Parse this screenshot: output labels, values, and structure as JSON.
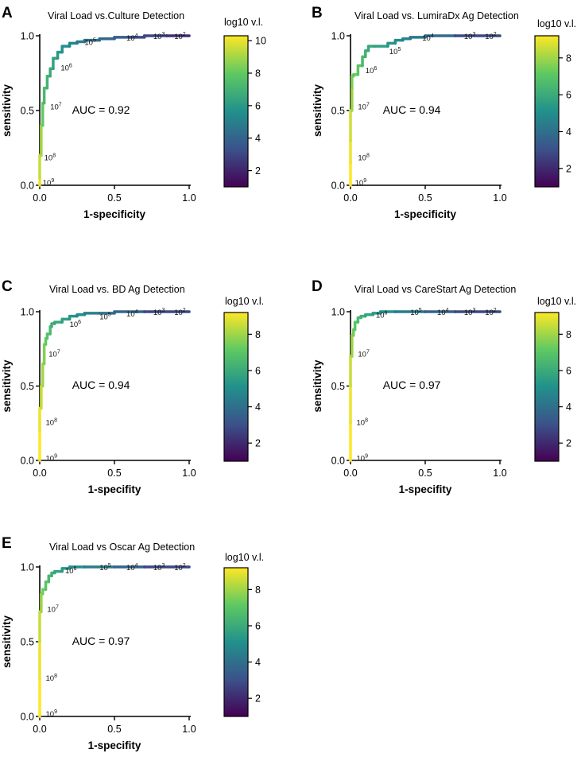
{
  "figure": {
    "colorbar_title": "log10 v.l."
  },
  "colormap": [
    "#440154",
    "#3b528b",
    "#21918c",
    "#5ec962",
    "#fde725"
  ],
  "chart_data": [
    {
      "panel": "A",
      "type": "line",
      "title": "Viral Load vs.Culture Detection",
      "xlabel": "1-specificity",
      "ylabel": "sensitivity",
      "xlim": [
        0,
        1
      ],
      "ylim": [
        0,
        1
      ],
      "xticks": [
        "0.0",
        "0.5",
        "1.0"
      ],
      "yticks": [
        "0.0",
        "0.5",
        "1.0"
      ],
      "auc_label": "AUC = 0.92",
      "colorbar": {
        "min": 1,
        "max": 10.3,
        "ticks": [
          "2",
          "4",
          "6",
          "8",
          "10"
        ],
        "tick_values": [
          2,
          4,
          6,
          8,
          10
        ]
      },
      "roc": [
        [
          0,
          0
        ],
        [
          0,
          0.05
        ],
        [
          0.01,
          0.2
        ],
        [
          0.02,
          0.4
        ],
        [
          0.03,
          0.55
        ],
        [
          0.05,
          0.65
        ],
        [
          0.07,
          0.73
        ],
        [
          0.09,
          0.78
        ],
        [
          0.12,
          0.85
        ],
        [
          0.15,
          0.89
        ],
        [
          0.2,
          0.93
        ],
        [
          0.25,
          0.95
        ],
        [
          0.3,
          0.96
        ],
        [
          0.4,
          0.97
        ],
        [
          0.5,
          0.98
        ],
        [
          0.6,
          0.99
        ],
        [
          0.7,
          0.99
        ],
        [
          0.85,
          1.0
        ],
        [
          1.0,
          1.0
        ]
      ],
      "roc_log10": [
        10,
        9.5,
        9,
        8,
        7.3,
        7,
        6.7,
        6.3,
        6,
        5.6,
        5.2,
        4.9,
        4.5,
        4.2,
        3.8,
        3.2,
        3,
        2.3,
        1.3
      ],
      "annotations": [
        {
          "base": "10",
          "exp": "2",
          "x": 0.9,
          "y": 1.0
        },
        {
          "base": "10",
          "exp": "3",
          "x": 0.76,
          "y": 1.0
        },
        {
          "base": "10",
          "exp": "4",
          "x": 0.58,
          "y": 0.99
        },
        {
          "base": "10",
          "exp": "5",
          "x": 0.3,
          "y": 0.96
        },
        {
          "base": "10",
          "exp": "6",
          "x": 0.14,
          "y": 0.79
        },
        {
          "base": "10",
          "exp": "7",
          "x": 0.07,
          "y": 0.53
        },
        {
          "base": "10",
          "exp": "8",
          "x": 0.03,
          "y": 0.19
        },
        {
          "base": "10",
          "exp": "9",
          "x": 0.02,
          "y": 0.02
        }
      ]
    },
    {
      "panel": "B",
      "type": "line",
      "title": "Viral Load vs. LumiraDx Ag Detection",
      "xlabel": "1-specificity",
      "ylabel": "sensitivity",
      "xlim": [
        0,
        1
      ],
      "ylim": [
        0,
        1
      ],
      "xticks": [
        "0.0",
        "0.5",
        "1.0"
      ],
      "yticks": [
        "0.0",
        "0.5",
        "1.0"
      ],
      "auc_label": "AUC = 0.94",
      "colorbar": {
        "min": 1,
        "max": 9.2,
        "ticks": [
          "2",
          "4",
          "6",
          "8"
        ],
        "tick_values": [
          2,
          4,
          6,
          8
        ]
      },
      "roc": [
        [
          0,
          0
        ],
        [
          0,
          0.15
        ],
        [
          0,
          0.3
        ],
        [
          0.01,
          0.5
        ],
        [
          0.01,
          0.65
        ],
        [
          0.02,
          0.73
        ],
        [
          0.05,
          0.74
        ],
        [
          0.08,
          0.8
        ],
        [
          0.1,
          0.86
        ],
        [
          0.12,
          0.9
        ],
        [
          0.16,
          0.93
        ],
        [
          0.25,
          0.93
        ],
        [
          0.3,
          0.95
        ],
        [
          0.35,
          0.97
        ],
        [
          0.4,
          0.98
        ],
        [
          0.5,
          0.99
        ],
        [
          0.7,
          1.0
        ],
        [
          1.0,
          1.0
        ]
      ],
      "roc_log10": [
        9.2,
        9,
        8.6,
        8,
        7.6,
        7.2,
        7,
        6.5,
        6.2,
        5.9,
        5.6,
        5.3,
        5,
        4.7,
        4.3,
        3.9,
        2.8,
        1.2
      ],
      "annotations": [
        {
          "base": "10",
          "exp": "2",
          "x": 0.9,
          "y": 1.0
        },
        {
          "base": "10",
          "exp": "3",
          "x": 0.76,
          "y": 1.0
        },
        {
          "base": "10",
          "exp": "4",
          "x": 0.48,
          "y": 0.99
        },
        {
          "base": "10",
          "exp": "5",
          "x": 0.26,
          "y": 0.9
        },
        {
          "base": "10",
          "exp": "6",
          "x": 0.1,
          "y": 0.77
        },
        {
          "base": "10",
          "exp": "7",
          "x": 0.05,
          "y": 0.53
        },
        {
          "base": "10",
          "exp": "8",
          "x": 0.05,
          "y": 0.19
        },
        {
          "base": "10",
          "exp": "9",
          "x": 0.03,
          "y": 0.02
        }
      ]
    },
    {
      "panel": "C",
      "type": "line",
      "title": "Viral Load vs. BD Ag Detection",
      "xlabel": "1-specifity",
      "ylabel": "sensitivity",
      "xlim": [
        0,
        1
      ],
      "ylim": [
        0,
        1
      ],
      "xticks": [
        "0.0",
        "0.5",
        "1.0"
      ],
      "yticks": [
        "0.0",
        "0.5",
        "1.0"
      ],
      "auc_label": "AUC = 0.94",
      "colorbar": {
        "min": 1,
        "max": 9.2,
        "ticks": [
          "2",
          "4",
          "6",
          "8"
        ],
        "tick_values": [
          2,
          4,
          6,
          8
        ]
      },
      "roc": [
        [
          0,
          0
        ],
        [
          0,
          0.2
        ],
        [
          0.01,
          0.35
        ],
        [
          0.02,
          0.5
        ],
        [
          0.03,
          0.65
        ],
        [
          0.04,
          0.78
        ],
        [
          0.05,
          0.82
        ],
        [
          0.07,
          0.85
        ],
        [
          0.08,
          0.9
        ],
        [
          0.1,
          0.92
        ],
        [
          0.15,
          0.93
        ],
        [
          0.2,
          0.95
        ],
        [
          0.25,
          0.97
        ],
        [
          0.3,
          0.98
        ],
        [
          0.4,
          0.99
        ],
        [
          0.5,
          0.99
        ],
        [
          0.7,
          1.0
        ],
        [
          1.0,
          1.0
        ]
      ],
      "roc_log10": [
        9.2,
        9,
        8.5,
        8,
        7.6,
        7.2,
        6.9,
        6.6,
        6.2,
        5.9,
        5.6,
        5.3,
        5,
        4.6,
        4.2,
        3.7,
        2.8,
        1.2
      ],
      "annotations": [
        {
          "base": "10",
          "exp": "2",
          "x": 0.9,
          "y": 1.0
        },
        {
          "base": "10",
          "exp": "3",
          "x": 0.76,
          "y": 1.0
        },
        {
          "base": "10",
          "exp": "4",
          "x": 0.58,
          "y": 0.99
        },
        {
          "base": "10",
          "exp": "5",
          "x": 0.4,
          "y": 0.97
        },
        {
          "base": "10",
          "exp": "6",
          "x": 0.2,
          "y": 0.92
        },
        {
          "base": "10",
          "exp": "7",
          "x": 0.06,
          "y": 0.72
        },
        {
          "base": "10",
          "exp": "8",
          "x": 0.04,
          "y": 0.26
        },
        {
          "base": "10",
          "exp": "9",
          "x": 0.04,
          "y": 0.02
        }
      ]
    },
    {
      "panel": "D",
      "type": "line",
      "title": "Viral Load vs CareStart Ag Detection",
      "xlabel": "1-specifity",
      "ylabel": "sensitivity",
      "xlim": [
        0,
        1
      ],
      "ylim": [
        0,
        1
      ],
      "xticks": [
        "0.0",
        "0.5",
        "1.0"
      ],
      "yticks": [
        "0.0",
        "0.5",
        "1.0"
      ],
      "auc_label": "AUC = 0.97",
      "colorbar": {
        "min": 1,
        "max": 9.2,
        "ticks": [
          "2",
          "4",
          "6",
          "8"
        ],
        "tick_values": [
          2,
          4,
          6,
          8
        ]
      },
      "roc": [
        [
          0,
          0
        ],
        [
          0,
          0.25
        ],
        [
          0,
          0.5
        ],
        [
          0.01,
          0.7
        ],
        [
          0.02,
          0.84
        ],
        [
          0.03,
          0.88
        ],
        [
          0.05,
          0.93
        ],
        [
          0.07,
          0.96
        ],
        [
          0.1,
          0.97
        ],
        [
          0.15,
          0.98
        ],
        [
          0.2,
          0.99
        ],
        [
          0.3,
          1.0
        ],
        [
          0.5,
          1.0
        ],
        [
          0.7,
          1.0
        ],
        [
          1.0,
          1.0
        ]
      ],
      "roc_log10": [
        9.2,
        9,
        8.5,
        8,
        7.4,
        7,
        6.6,
        6.2,
        5.8,
        5.4,
        5,
        4.4,
        3.6,
        2.8,
        1.2
      ],
      "annotations": [
        {
          "base": "10",
          "exp": "2",
          "x": 0.9,
          "y": 1.0
        },
        {
          "base": "10",
          "exp": "3",
          "x": 0.76,
          "y": 1.0
        },
        {
          "base": "10",
          "exp": "4",
          "x": 0.58,
          "y": 1.0
        },
        {
          "base": "10",
          "exp": "5",
          "x": 0.4,
          "y": 1.0
        },
        {
          "base": "10",
          "exp": "6",
          "x": 0.17,
          "y": 0.98
        },
        {
          "base": "10",
          "exp": "7",
          "x": 0.05,
          "y": 0.72
        },
        {
          "base": "10",
          "exp": "8",
          "x": 0.04,
          "y": 0.26
        },
        {
          "base": "10",
          "exp": "9",
          "x": 0.04,
          "y": 0.02
        }
      ]
    },
    {
      "panel": "E",
      "type": "line",
      "title": "Viral Load vs Oscar Ag Detection",
      "xlabel": "1-specifity",
      "ylabel": "sensitivity",
      "xlim": [
        0,
        1
      ],
      "ylim": [
        0,
        1
      ],
      "xticks": [
        "0.0",
        "0.5",
        "1.0"
      ],
      "yticks": [
        "0.0",
        "0.5",
        "1.0"
      ],
      "auc_label": "AUC = 0.97",
      "colorbar": {
        "min": 1,
        "max": 9.2,
        "ticks": [
          "2",
          "4",
          "6",
          "8"
        ],
        "tick_values": [
          2,
          4,
          6,
          8
        ]
      },
      "roc": [
        [
          0,
          0
        ],
        [
          0,
          0.25
        ],
        [
          0,
          0.5
        ],
        [
          0.01,
          0.7
        ],
        [
          0.02,
          0.82
        ],
        [
          0.04,
          0.85
        ],
        [
          0.06,
          0.9
        ],
        [
          0.08,
          0.94
        ],
        [
          0.1,
          0.96
        ],
        [
          0.15,
          0.97
        ],
        [
          0.2,
          0.99
        ],
        [
          0.3,
          1.0
        ],
        [
          0.5,
          1.0
        ],
        [
          0.7,
          1.0
        ],
        [
          1.0,
          1.0
        ]
      ],
      "roc_log10": [
        9.2,
        9,
        8.5,
        8,
        7.4,
        7,
        6.6,
        6.2,
        5.8,
        5.4,
        5,
        4.4,
        3.6,
        2.8,
        1.2
      ],
      "annotations": [
        {
          "base": "10",
          "exp": "2",
          "x": 0.9,
          "y": 1.0
        },
        {
          "base": "10",
          "exp": "3",
          "x": 0.76,
          "y": 1.0
        },
        {
          "base": "10",
          "exp": "4",
          "x": 0.58,
          "y": 1.0
        },
        {
          "base": "10",
          "exp": "5",
          "x": 0.4,
          "y": 1.0
        },
        {
          "base": "10",
          "exp": "6",
          "x": 0.17,
          "y": 0.98
        },
        {
          "base": "10",
          "exp": "7",
          "x": 0.05,
          "y": 0.72
        },
        {
          "base": "10",
          "exp": "8",
          "x": 0.04,
          "y": 0.26
        },
        {
          "base": "10",
          "exp": "9",
          "x": 0.04,
          "y": 0.02
        }
      ]
    }
  ]
}
